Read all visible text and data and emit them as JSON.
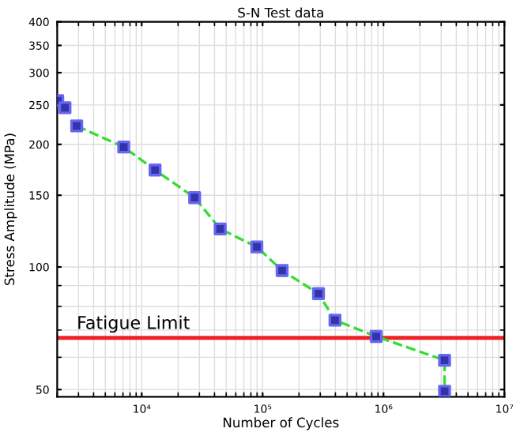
{
  "chart_data": {
    "type": "scatter",
    "title": "S-N Test data",
    "xlabel": "Number of Cycles",
    "ylabel": "Stress Amplitude (MPa)",
    "log": "xy",
    "grid": true,
    "xlim": [
      2000,
      10000000
    ],
    "ylim": [
      48,
      400
    ],
    "xticks": [
      {
        "value": 10000,
        "label": "10⁴"
      },
      {
        "value": 100000,
        "label": "10⁵"
      },
      {
        "value": 1000000,
        "label": "10⁶"
      },
      {
        "value": 10000000,
        "label": "10⁷"
      }
    ],
    "yticks": [
      50,
      100,
      150,
      200,
      250,
      300,
      350,
      400
    ],
    "series": [
      {
        "type": "line",
        "color": "#33dd33",
        "line_style": "dashed",
        "marker": "none",
        "x": [
          2900,
          7100,
          12900,
          27400,
          44600,
          89600,
          145000,
          290000,
          397000,
          870000,
          3200000,
          3200000
        ],
        "values": [
          222,
          197,
          173,
          148,
          124,
          112,
          98,
          86,
          74,
          67.5,
          59,
          49.5
        ]
      },
      {
        "color": "#3333aa",
        "marker": "square",
        "x": [
          2020,
          2320,
          2900,
          7100,
          12900,
          27400,
          44600,
          89600,
          145000,
          290000,
          397000,
          870000,
          3200000,
          3200000
        ],
        "values": [
          256,
          246,
          222,
          197,
          173,
          148,
          124,
          112,
          98,
          86,
          74,
          67.5,
          59,
          49.5
        ]
      }
    ],
    "ref_lines": [
      {
        "axis": "y",
        "value": 67,
        "label": "Fatigue Limit",
        "color": "#ee2222"
      }
    ]
  }
}
